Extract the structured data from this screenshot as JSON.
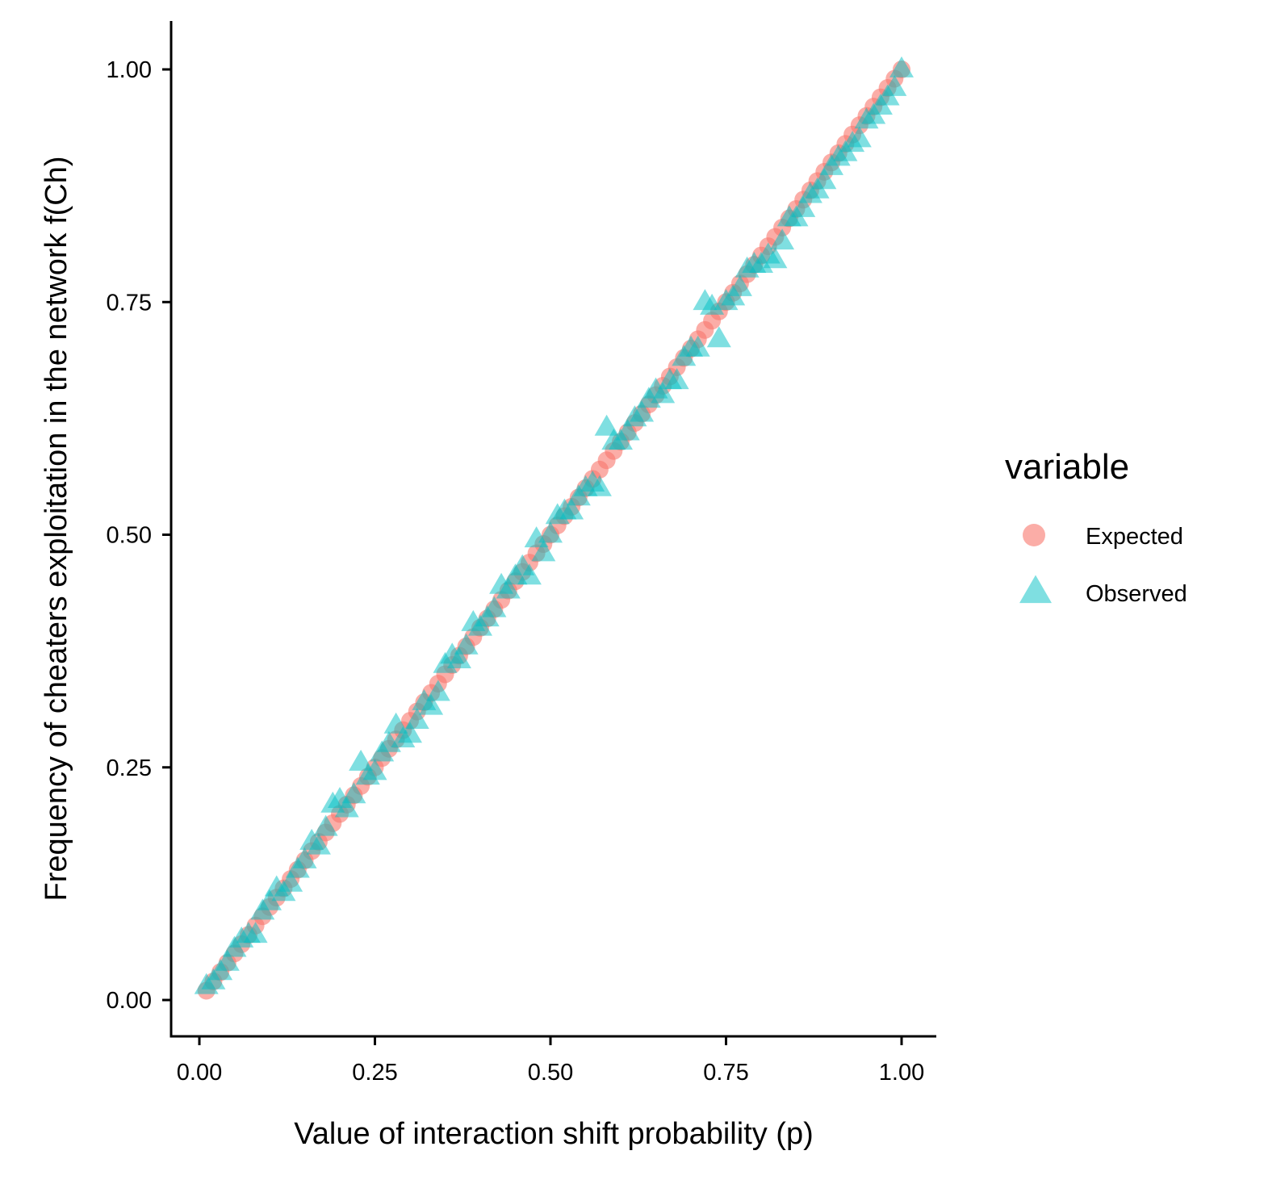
{
  "chart_data": {
    "type": "scatter",
    "title": "",
    "xlabel": "Value of interaction shift probability (p)",
    "ylabel": "Frequency of cheaters exploitation in the network f(Ch)",
    "xlim": [
      -0.04,
      1.05
    ],
    "ylim": [
      -0.04,
      1.05
    ],
    "x_ticks": [
      0.0,
      0.25,
      0.5,
      0.75,
      1.0
    ],
    "x_tick_labels": [
      "0.00",
      "0.25",
      "0.50",
      "0.75",
      "1.00"
    ],
    "y_ticks": [
      0.0,
      0.25,
      0.5,
      0.75,
      1.0
    ],
    "y_tick_labels": [
      "0.00",
      "0.25",
      "0.50",
      "0.75",
      "1.00"
    ],
    "grid": false,
    "legend": {
      "title": "variable",
      "placement": "right",
      "entries": [
        {
          "label": "Expected",
          "shape": "circle"
        },
        {
          "label": "Observed",
          "shape": "triangle"
        }
      ]
    },
    "series": [
      {
        "name": "Expected",
        "shape": "circle",
        "color": "#F8766D",
        "opacity": 0.6,
        "x": [
          0.01,
          0.02,
          0.03,
          0.04,
          0.05,
          0.06,
          0.07,
          0.08,
          0.09,
          0.1,
          0.11,
          0.12,
          0.13,
          0.14,
          0.15,
          0.16,
          0.17,
          0.18,
          0.19,
          0.2,
          0.21,
          0.22,
          0.23,
          0.24,
          0.25,
          0.26,
          0.27,
          0.28,
          0.29,
          0.3,
          0.31,
          0.32,
          0.33,
          0.34,
          0.35,
          0.36,
          0.37,
          0.38,
          0.39,
          0.4,
          0.41,
          0.42,
          0.43,
          0.44,
          0.45,
          0.46,
          0.47,
          0.48,
          0.49,
          0.5,
          0.51,
          0.52,
          0.53,
          0.54,
          0.55,
          0.56,
          0.57,
          0.58,
          0.59,
          0.6,
          0.61,
          0.62,
          0.63,
          0.64,
          0.65,
          0.66,
          0.67,
          0.68,
          0.69,
          0.7,
          0.71,
          0.72,
          0.73,
          0.74,
          0.75,
          0.76,
          0.77,
          0.78,
          0.79,
          0.8,
          0.81,
          0.82,
          0.83,
          0.84,
          0.85,
          0.86,
          0.87,
          0.88,
          0.89,
          0.9,
          0.91,
          0.92,
          0.93,
          0.94,
          0.95,
          0.96,
          0.97,
          0.98,
          0.99,
          1.0
        ],
        "y": [
          0.01,
          0.02,
          0.03,
          0.04,
          0.05,
          0.06,
          0.07,
          0.08,
          0.09,
          0.1,
          0.11,
          0.12,
          0.13,
          0.14,
          0.15,
          0.16,
          0.17,
          0.18,
          0.19,
          0.2,
          0.21,
          0.22,
          0.23,
          0.24,
          0.25,
          0.26,
          0.27,
          0.28,
          0.29,
          0.3,
          0.31,
          0.32,
          0.33,
          0.34,
          0.35,
          0.36,
          0.37,
          0.38,
          0.39,
          0.4,
          0.41,
          0.42,
          0.43,
          0.44,
          0.45,
          0.46,
          0.47,
          0.48,
          0.49,
          0.5,
          0.51,
          0.52,
          0.53,
          0.54,
          0.55,
          0.56,
          0.57,
          0.58,
          0.59,
          0.6,
          0.61,
          0.62,
          0.63,
          0.64,
          0.65,
          0.66,
          0.67,
          0.68,
          0.69,
          0.7,
          0.71,
          0.72,
          0.73,
          0.74,
          0.75,
          0.76,
          0.77,
          0.78,
          0.79,
          0.8,
          0.81,
          0.82,
          0.83,
          0.84,
          0.85,
          0.86,
          0.87,
          0.88,
          0.89,
          0.9,
          0.91,
          0.92,
          0.93,
          0.94,
          0.95,
          0.96,
          0.97,
          0.98,
          0.99,
          1.0
        ]
      },
      {
        "name": "Observed",
        "shape": "triangle",
        "color": "#00BFC4",
        "opacity": 0.5,
        "x": [
          0.01,
          0.02,
          0.03,
          0.04,
          0.05,
          0.06,
          0.07,
          0.08,
          0.09,
          0.1,
          0.11,
          0.12,
          0.13,
          0.14,
          0.15,
          0.16,
          0.17,
          0.18,
          0.19,
          0.2,
          0.21,
          0.22,
          0.23,
          0.24,
          0.25,
          0.26,
          0.27,
          0.28,
          0.29,
          0.3,
          0.31,
          0.32,
          0.33,
          0.34,
          0.35,
          0.36,
          0.37,
          0.38,
          0.39,
          0.4,
          0.41,
          0.42,
          0.43,
          0.44,
          0.45,
          0.46,
          0.47,
          0.48,
          0.49,
          0.5,
          0.51,
          0.52,
          0.53,
          0.54,
          0.55,
          0.56,
          0.57,
          0.58,
          0.59,
          0.6,
          0.61,
          0.62,
          0.63,
          0.64,
          0.65,
          0.66,
          0.67,
          0.68,
          0.69,
          0.7,
          0.71,
          0.72,
          0.73,
          0.74,
          0.75,
          0.76,
          0.77,
          0.78,
          0.79,
          0.8,
          0.81,
          0.82,
          0.83,
          0.84,
          0.85,
          0.86,
          0.87,
          0.88,
          0.89,
          0.9,
          0.91,
          0.92,
          0.93,
          0.94,
          0.95,
          0.96,
          0.97,
          0.98,
          0.99,
          1.0
        ],
        "y": [
          0.015,
          0.02,
          0.03,
          0.04,
          0.055,
          0.065,
          0.07,
          0.07,
          0.095,
          0.105,
          0.12,
          0.115,
          0.125,
          0.14,
          0.15,
          0.17,
          0.165,
          0.185,
          0.21,
          0.215,
          0.205,
          0.22,
          0.255,
          0.24,
          0.245,
          0.265,
          0.275,
          0.295,
          0.28,
          0.285,
          0.3,
          0.32,
          0.315,
          0.33,
          0.36,
          0.37,
          0.365,
          0.38,
          0.405,
          0.4,
          0.41,
          0.42,
          0.445,
          0.44,
          0.455,
          0.465,
          0.455,
          0.495,
          0.48,
          0.5,
          0.52,
          0.525,
          0.525,
          0.54,
          0.55,
          0.555,
          0.55,
          0.615,
          0.6,
          0.6,
          0.61,
          0.625,
          0.63,
          0.645,
          0.655,
          0.65,
          0.665,
          0.665,
          0.69,
          0.7,
          0.7,
          0.75,
          0.745,
          0.71,
          0.75,
          0.755,
          0.765,
          0.785,
          0.79,
          0.79,
          0.8,
          0.795,
          0.815,
          0.84,
          0.84,
          0.85,
          0.865,
          0.87,
          0.88,
          0.895,
          0.905,
          0.91,
          0.92,
          0.925,
          0.945,
          0.95,
          0.96,
          0.97,
          0.98,
          1.0
        ]
      }
    ]
  }
}
